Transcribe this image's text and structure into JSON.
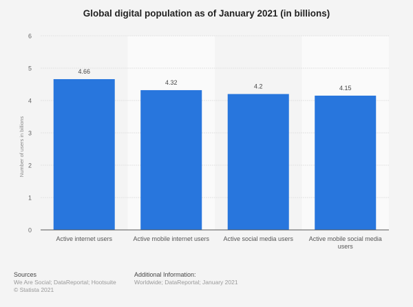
{
  "chart_data": {
    "type": "bar",
    "title": "Global digital population as of January 2021 (in billions)",
    "xlabel": "",
    "ylabel": "Number of users in billions",
    "categories": [
      "Active internet users",
      "Active mobile internet users",
      "Active social media users",
      "Active mobile social media users"
    ],
    "values": [
      4.66,
      4.32,
      4.2,
      4.15
    ],
    "value_labels": [
      "4.66",
      "4.32",
      "4.2",
      "4.15"
    ],
    "ylim": [
      0,
      6
    ],
    "yticks": [
      "0",
      "1",
      "2",
      "3",
      "4",
      "5",
      "6"
    ],
    "grid": true,
    "bar_color": "#2876dd"
  },
  "footer": {
    "sources_heading": "Sources",
    "sources": "We Are Social; DataReportal; Hootsuite",
    "copyright": "© Statista 2021",
    "additional_heading": "Additional Information:",
    "additional": "Worldwide; DataReportal; January 2021"
  }
}
